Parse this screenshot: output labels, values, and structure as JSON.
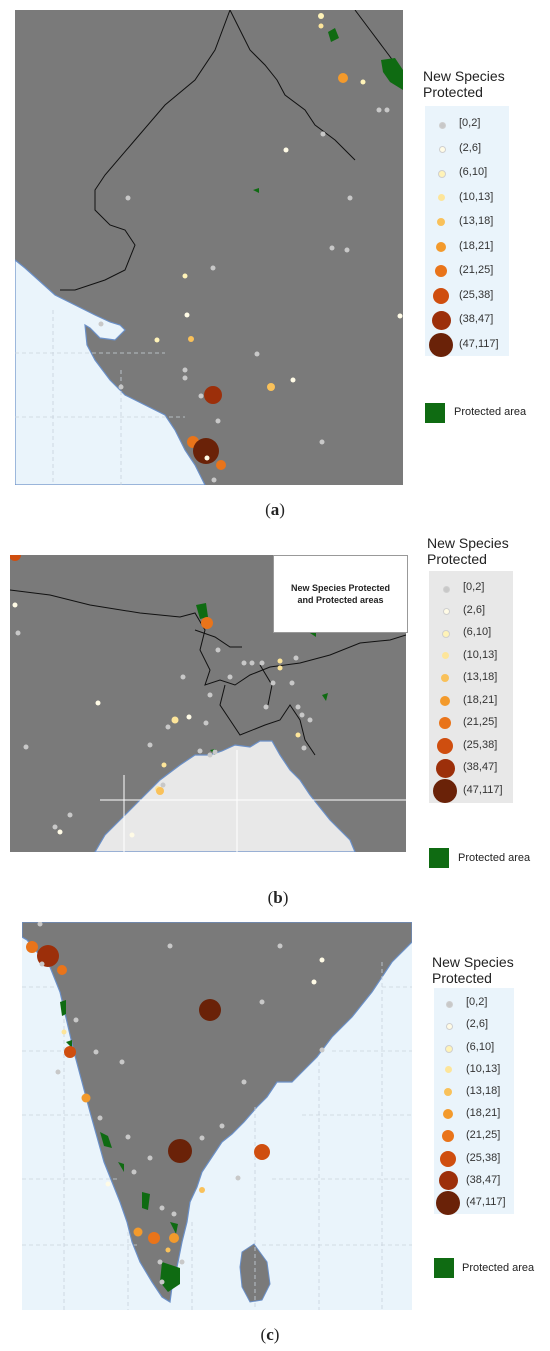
{
  "panels": [
    {
      "id": "a",
      "caption_letter": "a",
      "legend_title_line1": "New Species",
      "legend_title_line2": "Protected",
      "classes": [
        "[0,2]",
        "(2,6]",
        "(6,10]",
        "(10,13]",
        "(13,18]",
        "(18,21]",
        "(21,25]",
        "(25,38]",
        "(38,47]",
        "(47,117]"
      ],
      "protected_label": "Protected area"
    },
    {
      "id": "b",
      "caption_letter": "b",
      "legend_title_line1": "New Species",
      "legend_title_line2": "Protected",
      "inset_line1": "New Species Protected",
      "inset_line2": "and Protected areas",
      "classes": [
        "[0,2]",
        "(2,6]",
        "(6,10]",
        "(10,13]",
        "(13,18]",
        "(18,21]",
        "(21,25]",
        "(25,38]",
        "(38,47]",
        "(47,117]"
      ],
      "protected_label": "Protected area"
    },
    {
      "id": "c",
      "caption_letter": "c",
      "legend_title_line1": "New Species",
      "legend_title_line2": "Protected",
      "classes": [
        "[0,2]",
        "(2,6]",
        "(6,10]",
        "(10,13]",
        "(13,18]",
        "(18,21]",
        "(21,25]",
        "(25,38]",
        "(38,47]",
        "(47,117]"
      ],
      "protected_label": "Protected area"
    }
  ],
  "colors": {
    "land": "#7a7a7a",
    "sea": "#eaf4fb",
    "sea_grey": "#e8e8e8",
    "coast": "#6a8fc7",
    "border": "#111111",
    "protected": "#0f6b12",
    "class_colors": [
      "#c8c8c8",
      "#fffbe6",
      "#fff3b8",
      "#fde59a",
      "#f9c15a",
      "#f39a2c",
      "#e9741a",
      "#cf4e0f",
      "#9c2f0a",
      "#6a2208"
    ]
  }
}
